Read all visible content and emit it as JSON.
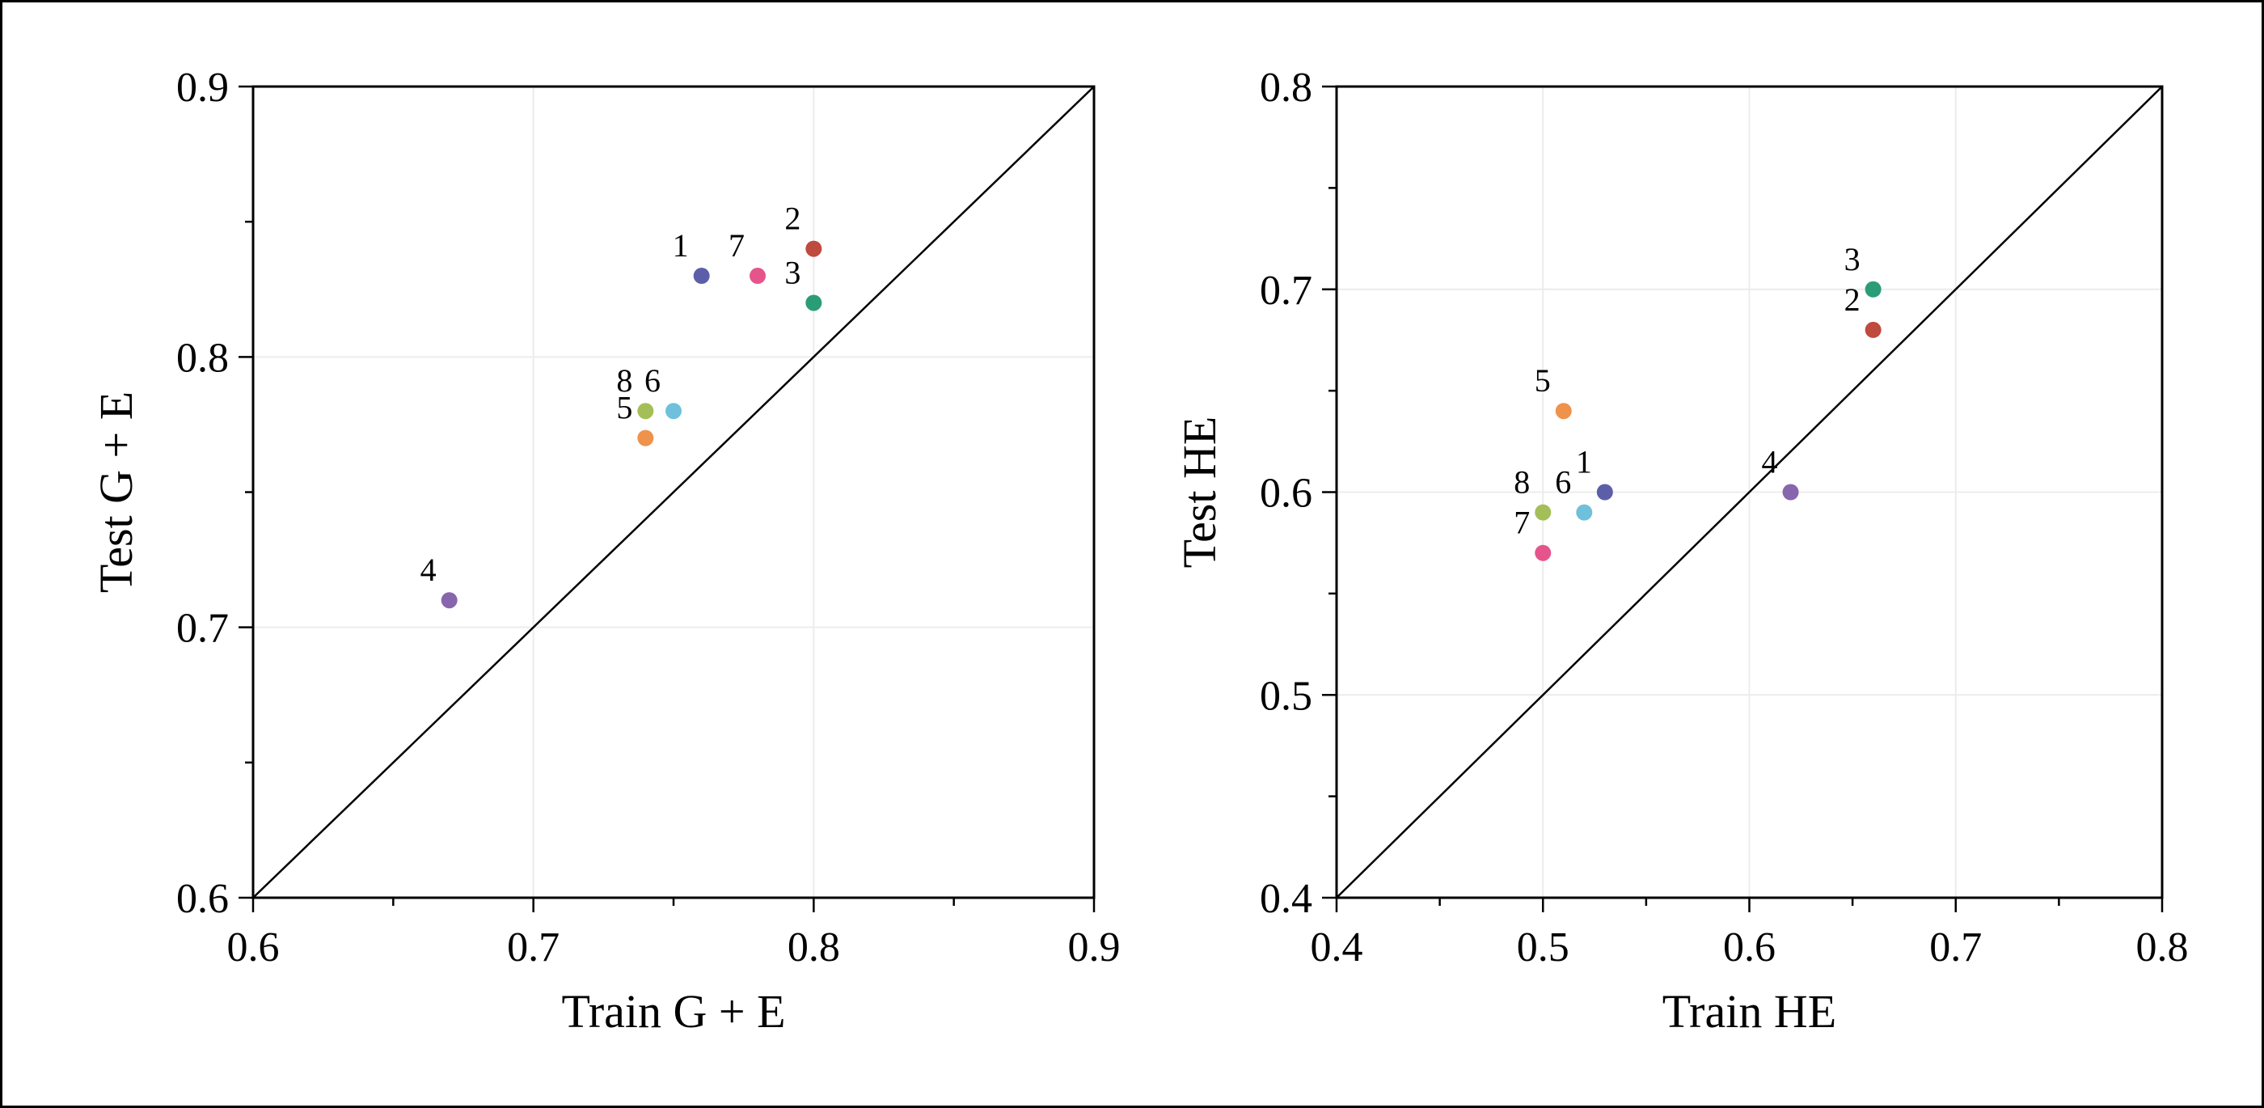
{
  "figure": {
    "background": "#ffffff",
    "border_color": "#000000",
    "text_color": "#000000"
  },
  "chart_data": [
    {
      "type": "scatter",
      "title": "",
      "xlabel": "Train G + E",
      "ylabel": "Test G + E",
      "xlim": [
        0.6,
        0.9
      ],
      "ylim": [
        0.6,
        0.9
      ],
      "xticks": [
        0.6,
        0.7,
        0.8,
        0.9
      ],
      "yticks": [
        0.6,
        0.7,
        0.8,
        0.9
      ],
      "minor_tick_step": 0.05,
      "grid": true,
      "grid_color": "#ececec",
      "identity_line": true,
      "legend": "none",
      "points": [
        {
          "label": "1",
          "x": 0.76,
          "y": 0.83,
          "color": "#5c5fa8"
        },
        {
          "label": "2",
          "x": 0.8,
          "y": 0.84,
          "color": "#bf4a3e"
        },
        {
          "label": "3",
          "x": 0.8,
          "y": 0.82,
          "color": "#2a9d78"
        },
        {
          "label": "4",
          "x": 0.67,
          "y": 0.71,
          "color": "#8766ad"
        },
        {
          "label": "5",
          "x": 0.74,
          "y": 0.77,
          "color": "#ef924b"
        },
        {
          "label": "6",
          "x": 0.75,
          "y": 0.78,
          "color": "#6fc0da"
        },
        {
          "label": "7",
          "x": 0.78,
          "y": 0.83,
          "color": "#e6548c"
        },
        {
          "label": "8",
          "x": 0.74,
          "y": 0.78,
          "color": "#a4bf57"
        }
      ]
    },
    {
      "type": "scatter",
      "title": "",
      "xlabel": "Train HE",
      "ylabel": "Test HE",
      "xlim": [
        0.4,
        0.8
      ],
      "ylim": [
        0.4,
        0.8
      ],
      "xticks": [
        0.4,
        0.5,
        0.6,
        0.7,
        0.8
      ],
      "yticks": [
        0.4,
        0.5,
        0.6,
        0.7,
        0.8
      ],
      "minor_tick_step": 0.05,
      "grid": true,
      "grid_color": "#ececec",
      "identity_line": true,
      "legend": "none",
      "points": [
        {
          "label": "1",
          "x": 0.53,
          "y": 0.6,
          "color": "#5c5fa8"
        },
        {
          "label": "2",
          "x": 0.66,
          "y": 0.68,
          "color": "#bf4a3e"
        },
        {
          "label": "3",
          "x": 0.66,
          "y": 0.7,
          "color": "#2a9d78"
        },
        {
          "label": "4",
          "x": 0.62,
          "y": 0.6,
          "color": "#8766ad"
        },
        {
          "label": "5",
          "x": 0.51,
          "y": 0.64,
          "color": "#ef924b"
        },
        {
          "label": "6",
          "x": 0.52,
          "y": 0.59,
          "color": "#6fc0da"
        },
        {
          "label": "7",
          "x": 0.5,
          "y": 0.57,
          "color": "#e6548c"
        },
        {
          "label": "8",
          "x": 0.5,
          "y": 0.59,
          "color": "#a4bf57"
        }
      ]
    }
  ]
}
